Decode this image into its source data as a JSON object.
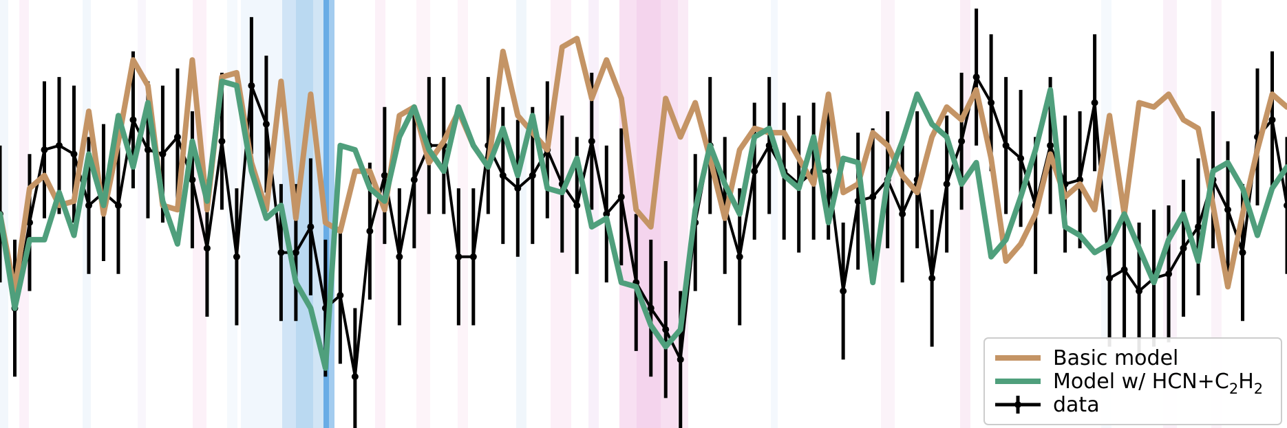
{
  "chart_data": {
    "type": "line",
    "title": "",
    "xlabel": "",
    "ylabel": "",
    "xlim": [
      0,
      87
    ],
    "ylim": [
      0,
      10
    ],
    "grid": false,
    "legend_placement": "lower-right",
    "x": [
      0,
      1,
      2,
      3,
      4,
      5,
      6,
      7,
      8,
      9,
      10,
      11,
      12,
      13,
      14,
      15,
      16,
      17,
      18,
      19,
      20,
      21,
      22,
      23,
      24,
      25,
      26,
      27,
      28,
      29,
      30,
      31,
      32,
      33,
      34,
      35,
      36,
      37,
      38,
      39,
      40,
      41,
      42,
      43,
      44,
      45,
      46,
      47,
      48,
      49,
      50,
      51,
      52,
      53,
      54,
      55,
      56,
      57,
      58,
      59,
      60,
      61,
      62,
      63,
      64,
      65,
      66,
      67,
      68,
      69,
      70,
      71,
      72,
      73,
      74,
      75,
      76,
      77,
      78,
      79,
      80,
      81,
      82,
      83,
      84,
      85,
      86,
      87
    ],
    "series": [
      {
        "name": "Basic model",
        "color": "#c49465",
        "values": [
          5.0,
          3.2,
          5.6,
          5.9,
          5.2,
          5.3,
          7.4,
          5.0,
          6.7,
          8.6,
          8.0,
          5.2,
          5.1,
          8.6,
          5.1,
          8.2,
          8.3,
          6.2,
          5.1,
          8.1,
          4.9,
          7.8,
          4.8,
          4.6,
          6.0,
          6.0,
          5.1,
          7.3,
          7.5,
          6.2,
          6.7,
          7.4,
          6.6,
          6.1,
          8.8,
          7.3,
          6.9,
          6.5,
          8.9,
          9.1,
          7.7,
          8.6,
          7.7,
          5.1,
          4.7,
          7.7,
          6.8,
          7.6,
          6.3,
          4.9,
          6.5,
          7.0,
          6.9,
          6.9,
          6.3,
          5.7,
          7.8,
          5.5,
          5.7,
          6.9,
          6.6,
          5.9,
          5.5,
          6.8,
          7.5,
          7.2,
          7.9,
          6.3,
          3.9,
          4.3,
          5.0,
          6.4,
          5.4,
          5.7,
          5.1,
          7.3,
          5.0,
          7.6,
          7.5,
          7.8,
          7.2,
          7.0,
          5.2,
          3.3,
          5.0,
          6.5,
          7.8,
          7.5
        ]
      },
      {
        "name": "Model w/ HCN+C₂H₂",
        "color": "#4f9f7c",
        "values": [
          5.0,
          2.8,
          4.4,
          4.4,
          5.5,
          4.5,
          6.4,
          5.2,
          7.3,
          6.1,
          7.6,
          5.3,
          4.3,
          6.7,
          5.3,
          8.1,
          8.0,
          6.0,
          4.9,
          5.2,
          3.4,
          2.8,
          1.4,
          6.6,
          6.5,
          5.6,
          5.3,
          6.8,
          7.5,
          6.5,
          6.0,
          7.5,
          6.6,
          6.1,
          7.0,
          5.9,
          7.3,
          5.6,
          5.5,
          6.3,
          4.7,
          4.9,
          3.4,
          3.3,
          2.4,
          1.9,
          2.3,
          5.1,
          6.6,
          5.7,
          5.0,
          6.8,
          7.0,
          5.9,
          5.6,
          6.8,
          4.8,
          6.3,
          6.2,
          3.4,
          5.8,
          6.7,
          7.8,
          7.1,
          6.8,
          5.7,
          6.2,
          4.0,
          4.4,
          5.4,
          6.5,
          7.9,
          4.7,
          4.5,
          4.1,
          4.3,
          5.0,
          4.2,
          3.4,
          4.4,
          5.0,
          3.9,
          6.0,
          6.2,
          5.6,
          4.5,
          5.6,
          6.1
        ]
      },
      {
        "name": "data",
        "color": "#000000",
        "errorbar": 1.6,
        "values": [
          5.0,
          2.8,
          4.8,
          6.5,
          6.6,
          6.4,
          5.2,
          5.5,
          5.2,
          7.2,
          6.5,
          6.4,
          6.8,
          5.8,
          4.2,
          6.7,
          4.0,
          8.0,
          7.1,
          4.1,
          4.1,
          4.7,
          2.8,
          3.1,
          1.2,
          4.6,
          5.9,
          4.0,
          5.8,
          6.6,
          6.6,
          4.0,
          4.0,
          6.6,
          5.9,
          5.6,
          5.9,
          6.5,
          5.7,
          5.2,
          6.7,
          5.0,
          5.4,
          3.4,
          2.8,
          2.3,
          1.6,
          4.8,
          6.6,
          5.2,
          4.0,
          6.0,
          6.6,
          6.0,
          5.7,
          6.0,
          6.0,
          3.2,
          5.3,
          5.4,
          5.8,
          5.0,
          5.8,
          3.5,
          5.7,
          6.7,
          8.2,
          7.6,
          6.6,
          6.3,
          5.2,
          6.6,
          5.7,
          5.8,
          7.6,
          3.5,
          3.7,
          3.2,
          3.5,
          3.6,
          4.2,
          4.7,
          5.8,
          5.1,
          4.1,
          6.8,
          7.2,
          5.2
        ]
      }
    ]
  },
  "legend": {
    "basic_label": "Basic model",
    "model_prefix": "Model w/ HCN+C",
    "model_sub1": "2",
    "model_mid": "H",
    "model_sub2": "2",
    "data_label": "data"
  }
}
